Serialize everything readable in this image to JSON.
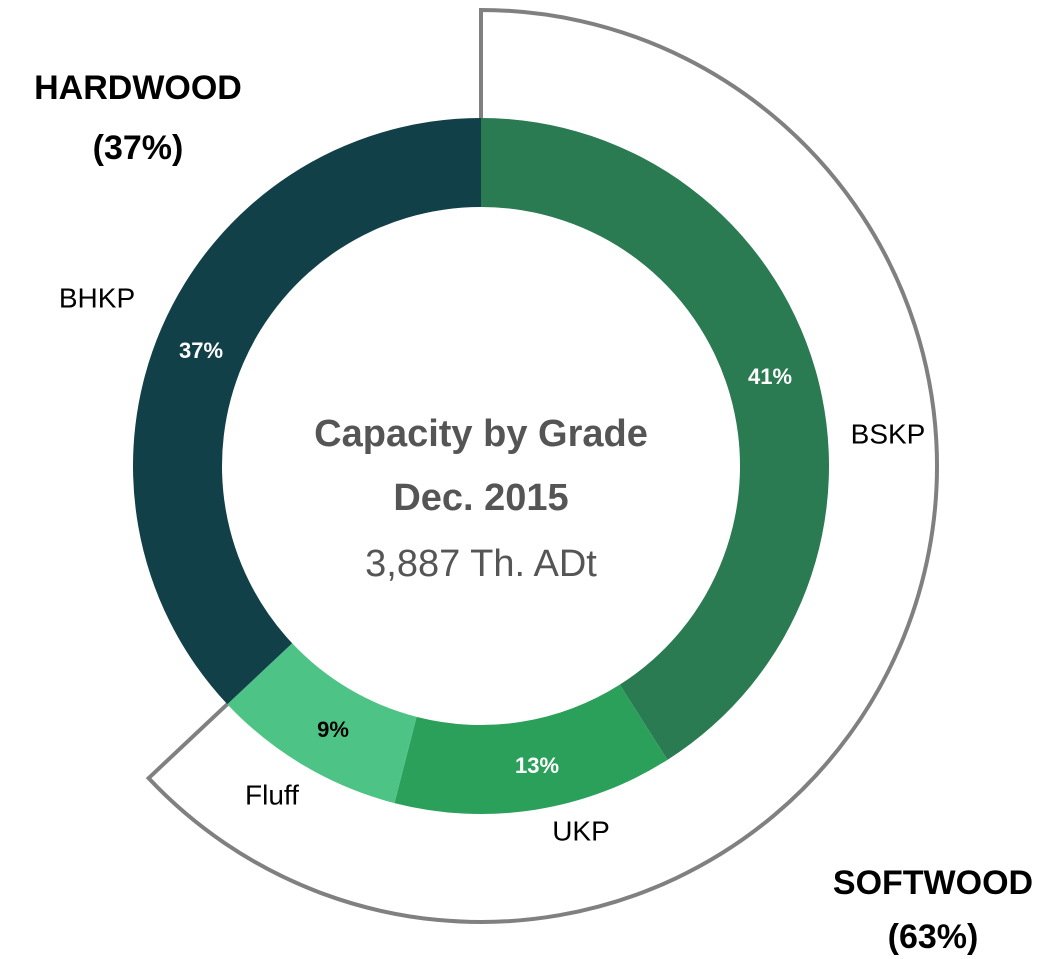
{
  "chart_data": {
    "type": "donut",
    "title": [
      "Capacity by Grade",
      "Dec. 2015"
    ],
    "subtitle": "3,887 Th. ADt",
    "categories": [
      "BSKP",
      "UKP",
      "Fluff",
      "BHKP"
    ],
    "values": [
      41,
      13,
      9,
      37
    ],
    "value_labels": [
      "41%",
      "13%",
      "9%",
      "37%"
    ],
    "colors": [
      "#2a7a52",
      "#2ba05a",
      "#4dc485",
      "#114048"
    ],
    "groups": [
      {
        "name": "HARDWOOD",
        "label": "(37%)"
      },
      {
        "name": "SOFTWOOD",
        "label": "(63%)"
      }
    ]
  }
}
